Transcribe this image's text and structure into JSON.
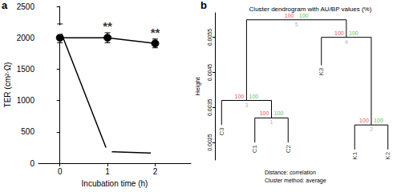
{
  "chart_data": [
    {
      "panel": "a",
      "type": "line",
      "x_label": "Incubation time (h)",
      "y_label": "TER (cm²·Ω)",
      "x": [
        0,
        1,
        2
      ],
      "series": [
        {
          "color": "#000000",
          "marker": "circle",
          "values": [
            2000,
            2000,
            1910
          ],
          "errors": [
            80,
            80,
            70
          ]
        },
        {
          "color": "#000000",
          "marker": "open_circle",
          "values": [
            2130,
            185,
            160
          ],
          "errors": [
            90,
            20,
            15
          ]
        }
      ],
      "xlim": [
        -0.45,
        2.75
      ],
      "xticks": [
        0,
        1,
        2
      ],
      "ylim": [
        0,
        2500
      ],
      "yticks": [
        0,
        500,
        1000,
        1500,
        2000,
        2500
      ],
      "grid": false,
      "annotations": [
        {
          "x": 1,
          "text": "**"
        },
        {
          "x": 2,
          "text": "**"
        }
      ]
    },
    {
      "panel": "b",
      "type": "dendrogram",
      "title": "Cluster dendrogram with AU/BP values (%)",
      "y_label": "Height",
      "ylim": [
        0.002,
        0.0062
      ],
      "yticks": [
        0.0025,
        0.0035,
        0.0045,
        0.0055
      ],
      "annotations": [
        "Distance: correlation",
        "Cluster method: average"
      ],
      "tree": {
        "height": 0.006,
        "au": 100,
        "bp": 100,
        "edge": 5,
        "children": [
          {
            "height": 0.0037,
            "au": 100,
            "bp": 100,
            "edge": 3,
            "children": [
              {
                "label": "C3",
                "height": 0.003
              },
              {
                "height": 0.0032,
                "au": 100,
                "bp": 100,
                "edge": 1,
                "children": [
                  {
                    "label": "C1",
                    "height": 0.0025
                  },
                  {
                    "label": "C2",
                    "height": 0.0025
                  }
                ]
              }
            ]
          },
          {
            "height": 0.0055,
            "au": 100,
            "bp": 100,
            "edge": 4,
            "children": [
              {
                "label": "K3",
                "height": 0.0047
              },
              {
                "height": 0.003,
                "au": 100,
                "bp": 100,
                "edge": 2,
                "children": [
                  {
                    "label": "K1",
                    "height": 0.0023
                  },
                  {
                    "label": "K2",
                    "height": 0.0023
                  }
                ]
              }
            ]
          }
        ]
      }
    }
  ]
}
